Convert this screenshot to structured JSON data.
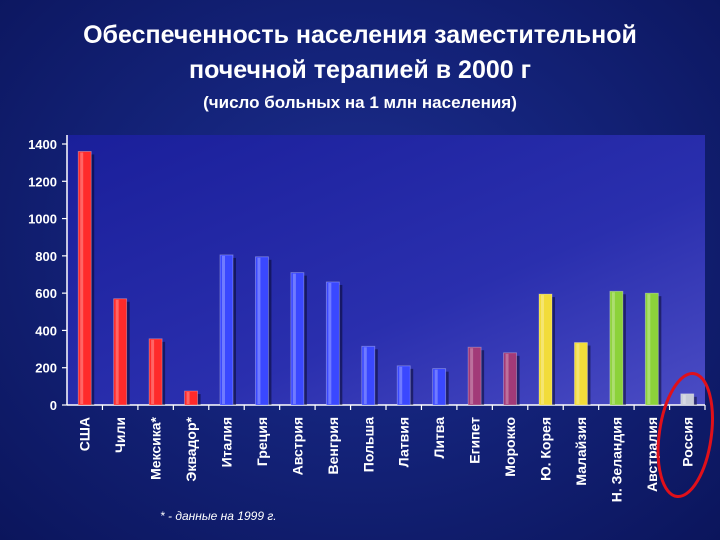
{
  "title_line1": "Обеспеченность населения заместительной",
  "title_line2": "почечной терапией в 2000 г",
  "subtitle": "(число больных на 1 млн населения)",
  "footnote": "* - данные на 1999 г.",
  "chart_data": {
    "type": "bar",
    "title": "Обеспеченность населения заместительной почечной терапией в 2000 г",
    "subtitle": "(число больных на 1 млн населения)",
    "categories": [
      "США",
      "Чили",
      "Мексика*",
      "Эквадор*",
      "Италия",
      "Греция",
      "Австрия",
      "Венгрия",
      "Польша",
      "Латвия",
      "Литва",
      "Египет",
      "Морокко",
      "Ю. Корея",
      "Малайзия",
      "Н. Зеландия",
      "Австралия",
      "Россия"
    ],
    "values": [
      1360,
      570,
      355,
      75,
      805,
      795,
      710,
      660,
      315,
      210,
      195,
      310,
      280,
      595,
      335,
      610,
      600,
      60
    ],
    "colors": [
      "#ff2a2a",
      "#ff2a2a",
      "#ff2a2a",
      "#ff2a2a",
      "#3a48ff",
      "#3a48ff",
      "#3a48ff",
      "#3a48ff",
      "#3a48ff",
      "#3a48ff",
      "#3a48ff",
      "#a23a78",
      "#a23a78",
      "#f2dc3a",
      "#f2dc3a",
      "#8cd23a",
      "#8cd23a",
      "#c8ccd8"
    ],
    "yticks": [
      0,
      200,
      400,
      600,
      800,
      1000,
      1200,
      1400
    ],
    "ylim": [
      0,
      1400
    ],
    "grid": false,
    "highlight": "Россия",
    "highlight_color": "#e0101a"
  }
}
